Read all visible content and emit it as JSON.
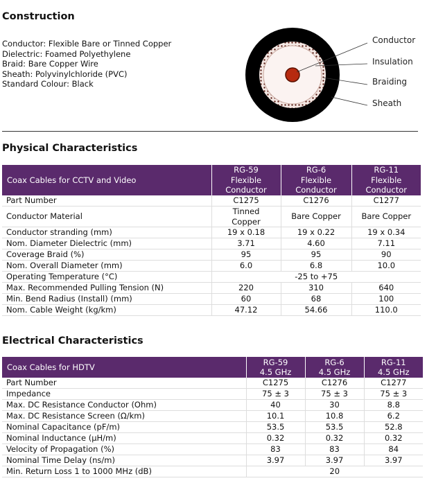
{
  "construction": {
    "title": "Construction",
    "specs": [
      "Conductor: Flexible Bare or Tinned Copper",
      "Dielectric: Foamed Polyethylene",
      "Braid: Bare Copper Wire",
      "Sheath: Polyvinylchloride (PVC)",
      "Standard Colour: Black"
    ],
    "diagram_labels": [
      "Conductor",
      "Insulation",
      "Braiding",
      "Sheath"
    ]
  },
  "physical": {
    "title": "Physical Characteristics",
    "table": {
      "header": [
        [
          "Coax Cables for CCTV and Video"
        ],
        [
          "RG-59",
          "Flexible",
          "Conductor"
        ],
        [
          "RG-6",
          "Flexible",
          "Conductor"
        ],
        [
          "RG-11",
          "Flexible",
          "Conductor"
        ]
      ],
      "rows": [
        [
          "Part Number",
          "C1275",
          "C1276",
          "C1277"
        ],
        [
          "Conductor Material",
          "Tinned Copper",
          "Bare Copper",
          "Bare Copper"
        ],
        [
          "Conductor stranding (mm)",
          "19 x 0.18",
          "19 x 0.22",
          "19 x 0.34"
        ],
        [
          "Nom. Diameter Dielectric (mm)",
          "3.71",
          "4.60",
          "7.11"
        ],
        [
          "Coverage Braid (%)",
          "95",
          "95",
          "90"
        ],
        [
          "Nom. Overall Diameter (mm)",
          "6.0",
          "6.8",
          "10.0"
        ],
        [
          "Operating Temperature (°C)",
          "-25 to +75"
        ],
        [
          "Max. Recommended Pulling Tension (N)",
          "220",
          "310",
          "640"
        ],
        [
          "Min. Bend Radius (Install) (mm)",
          "60",
          "68",
          "100"
        ],
        [
          "Nom. Cable Weight (kg/km)",
          "47.12",
          "54.66",
          "110.0"
        ]
      ]
    }
  },
  "electrical": {
    "title": "Electrical Characteristics",
    "table": {
      "header": [
        [
          "Coax Cables for HDTV"
        ],
        [
          "RG-59",
          "4.5 GHz"
        ],
        [
          "RG-6",
          "4.5 GHz"
        ],
        [
          "RG-11",
          "4.5 GHz"
        ]
      ],
      "rows": [
        [
          "Part Number",
          "C1275",
          "C1276",
          "C1277"
        ],
        [
          "Impedance",
          "75 ± 3",
          "75 ± 3",
          "75 ± 3"
        ],
        [
          "Max. DC Resistance Conductor (Ohm)",
          "40",
          "30",
          "8.8"
        ],
        [
          "Max. DC Resistance Screen (Ω/km)",
          "10.1",
          "10.8",
          "6.2"
        ],
        [
          "Nominal Capacitance (pF/m)",
          "53.5",
          "53.5",
          "52.8"
        ],
        [
          "Nominal Inductance (µH/m)",
          "0.32",
          "0.32",
          "0.32"
        ],
        [
          "Velocity of Propagation (%)",
          "83",
          "83",
          "84"
        ],
        [
          "Nominal Time Delay (ns/m)",
          "3.97",
          "3.97",
          "3.97"
        ],
        [
          "Min. Return Loss 1 to 1000 MHz (dB)",
          "20"
        ]
      ]
    }
  }
}
